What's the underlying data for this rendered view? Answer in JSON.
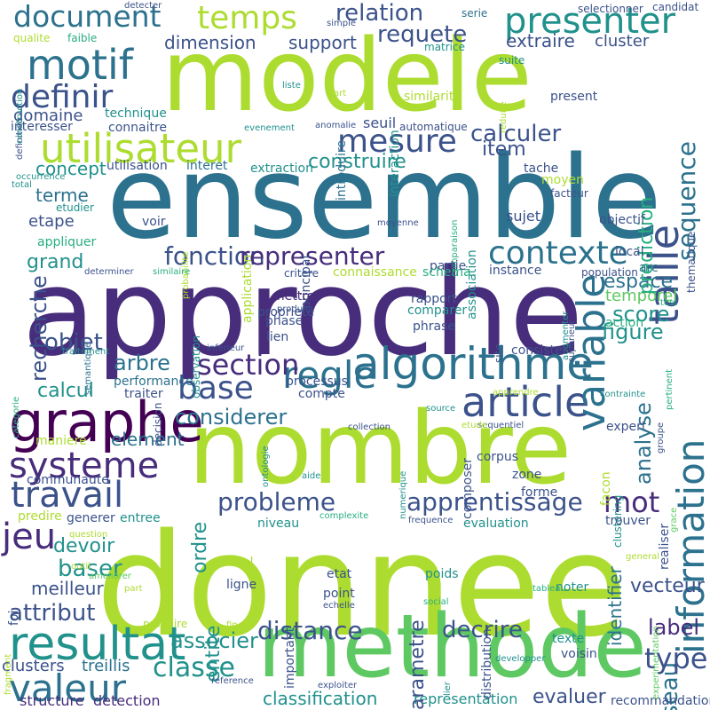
{
  "palette": {
    "background": "#ffffff",
    "c0": "#440154",
    "c1": "#472d7b",
    "c2": "#3b528b",
    "c3": "#2c728e",
    "c4": "#21918c",
    "c5": "#28ae80",
    "c6": "#5ec962",
    "c7": "#addc30"
  },
  "words": [
    "donnee",
    "approche",
    "ensemble",
    "nombre",
    "modele",
    "methode",
    "graphe",
    "algorithme",
    "information",
    "article",
    "resultat",
    "utilisateur",
    "systeme",
    "travail",
    "valeur",
    "variable",
    "taille",
    "presenter",
    "motif",
    "definir",
    "document",
    "temps",
    "regle",
    "section",
    "base",
    "mesure",
    "fonction",
    "representer",
    "contexte",
    "probleme",
    "apprentissage",
    "jeu",
    "mot",
    "calculer",
    "sequence",
    "relation",
    "requete",
    "extraire",
    "cluster",
    "dimension",
    "support",
    "domaine",
    "construire",
    "concept",
    "item",
    "recherche",
    "terme",
    "etape",
    "grand",
    "objet",
    "arbre",
    "calcul",
    "considerer",
    "element",
    "attribut",
    "classe",
    "associer",
    "distance",
    "decrire",
    "reseau",
    "type",
    "label",
    "vecteur",
    "entite",
    "baser",
    "devoir",
    "meilleur",
    "clusters",
    "treillis",
    "structure",
    "detection",
    "classification",
    "representation",
    "evaluer",
    "recommandation",
    "score",
    "figure",
    "espace",
    "temporel",
    "analyse",
    "identifier",
    "parametre",
    "prediction",
    "candidat",
    "serie",
    "simple",
    "detecter",
    "qualite",
    "faible",
    "matrice",
    "suite",
    "technique",
    "interaction",
    "similarite",
    "present",
    "liste",
    "art",
    "reduire",
    "introduire",
    "definition",
    "construction",
    "interesser",
    "connaitre",
    "evenement",
    "anomalie",
    "seuil",
    "automatique",
    "utilisation",
    "interet",
    "extraction",
    "tache",
    "moyen",
    "facteur",
    "thematique",
    "occurrence",
    "total",
    "etudier",
    "appliquer",
    "voir",
    "probabilite",
    "application",
    "principal",
    "comparaison",
    "association",
    "moyenne",
    "sujet",
    "objectif",
    "local",
    "arc",
    "partie",
    "schema",
    "connaissance",
    "critere",
    "instance",
    "population",
    "determiner",
    "similaire",
    "mettre",
    "produit",
    "propriete",
    "rapport",
    "comparer",
    "augmenter",
    "superieur",
    "test",
    "action",
    "categorie",
    "semantique",
    "phase",
    "lien",
    "phrase",
    "site",
    "observation",
    "traitement",
    "inferieur",
    "consister",
    "performance",
    "processus",
    "traiter",
    "decision",
    "compte",
    "apprendre",
    "pertinent",
    "contrainte",
    "source",
    "collection",
    "expert",
    "groupe",
    "sequentiel",
    "maniere",
    "etude",
    "ontologie",
    "communaute",
    "composer",
    "corpus",
    "zone",
    "aide",
    "numerique",
    "facon",
    "clustering",
    "realiser",
    "ordre",
    "forme",
    "predire",
    "generer",
    "entree",
    "niveau",
    "complexite",
    "evaluation",
    "frequence",
    "trouver",
    "grace",
    "question",
    "outil",
    "general",
    "reel",
    "etat",
    "poids",
    "foi",
    "ameliorer",
    "part",
    "tableau",
    "point",
    "distribution",
    "social",
    "ligne",
    "important",
    "echelle",
    "experimentation",
    "fragment",
    "produire",
    "noter",
    "fin",
    "voisin",
    "texte",
    "lier",
    "developper",
    "exploiter",
    "reference",
    "table",
    "selectionner"
  ]
}
